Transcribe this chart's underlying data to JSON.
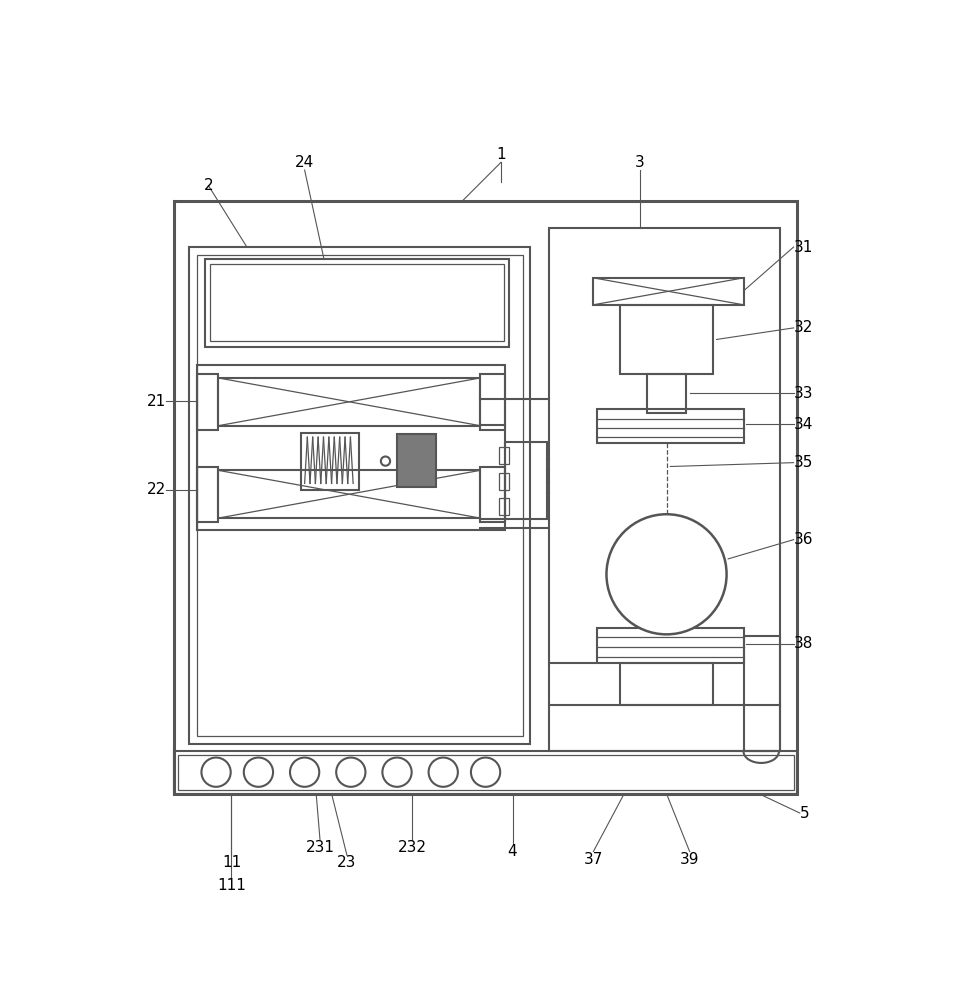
{
  "bg_color": "#ffffff",
  "lc": "#555555",
  "lw": 1.5,
  "tlw": 0.9,
  "fs": 11,
  "fig_width": 9.7,
  "fig_height": 10.0
}
